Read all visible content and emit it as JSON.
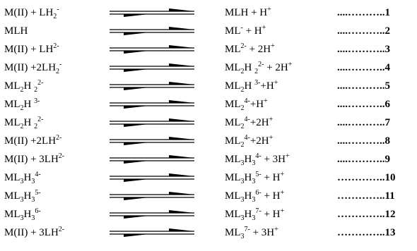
{
  "equations": [
    {
      "lhs": [
        {
          "t": "M(II) + LH"
        },
        {
          "t": "2",
          "s": "sub"
        },
        {
          "t": "-",
          "s": "sup"
        }
      ],
      "rhs": [
        {
          "t": "MLH + H"
        },
        {
          "t": "+",
          "s": "sup"
        }
      ],
      "number": "....………..1"
    },
    {
      "lhs": [
        {
          "t": "MLH"
        }
      ],
      "rhs": [
        {
          "t": "ML"
        },
        {
          "t": "-",
          "s": "sup"
        },
        {
          "t": " + H"
        },
        {
          "t": "+",
          "s": "sup"
        }
      ],
      "number": "....………..2"
    },
    {
      "lhs": [
        {
          "t": "M(II) + LH"
        },
        {
          "t": "2-",
          "s": "sup"
        }
      ],
      "rhs": [
        {
          "t": "ML"
        },
        {
          "t": "2-",
          "s": "sup"
        },
        {
          "t": " + 2H"
        },
        {
          "t": "+",
          "s": "sup"
        }
      ],
      "number": "....………..3"
    },
    {
      "lhs": [
        {
          "t": "M(II) +2LH"
        },
        {
          "t": "2",
          "s": "sub"
        },
        {
          "t": "-",
          "s": "sup"
        }
      ],
      "rhs": [
        {
          "t": "ML"
        },
        {
          "t": "2",
          "s": "sub"
        },
        {
          "t": "H "
        },
        {
          "t": "2",
          "s": "sub"
        },
        {
          "t": "2-",
          "s": "sup"
        },
        {
          "t": " + 2H"
        },
        {
          "t": "+",
          "s": "sup"
        }
      ],
      "number": "....………..4"
    },
    {
      "lhs": [
        {
          "t": "ML"
        },
        {
          "t": "2",
          "s": "sub"
        },
        {
          "t": "H "
        },
        {
          "t": "2",
          "s": "sub"
        },
        {
          "t": "2-",
          "s": "sup"
        }
      ],
      "rhs": [
        {
          "t": "ML"
        },
        {
          "t": "2",
          "s": "sub"
        },
        {
          "t": "H "
        },
        {
          "t": "3-",
          "s": "sup"
        },
        {
          "t": "+H"
        },
        {
          "t": "+",
          "s": "sup"
        }
      ],
      "number": "....………..5"
    },
    {
      "lhs": [
        {
          "t": "ML"
        },
        {
          "t": "2",
          "s": "sub"
        },
        {
          "t": "H "
        },
        {
          "t": "3-",
          "s": "sup"
        }
      ],
      "rhs": [
        {
          "t": "ML"
        },
        {
          "t": "2",
          "s": "sub"
        },
        {
          "t": "4-",
          "s": "sup"
        },
        {
          "t": "+H"
        },
        {
          "t": "+",
          "s": "sup"
        }
      ],
      "number": "....………..6"
    },
    {
      "lhs": [
        {
          "t": "ML"
        },
        {
          "t": "2",
          "s": "sub"
        },
        {
          "t": "H "
        },
        {
          "t": "2",
          "s": "sub"
        },
        {
          "t": "2-",
          "s": "sup"
        }
      ],
      "rhs": [
        {
          "t": "ML"
        },
        {
          "t": "2",
          "s": "sub"
        },
        {
          "t": "4-",
          "s": "sup"
        },
        {
          "t": "+2H"
        },
        {
          "t": "+",
          "s": "sup"
        }
      ],
      "number": "....………..7"
    },
    {
      "lhs": [
        {
          "t": "M(II) +2LH"
        },
        {
          "t": "2-",
          "s": "sup"
        }
      ],
      "rhs": [
        {
          "t": "ML"
        },
        {
          "t": "2",
          "s": "sub"
        },
        {
          "t": "4-",
          "s": "sup"
        },
        {
          "t": "+2H"
        },
        {
          "t": "+",
          "s": "sup"
        }
      ],
      "number": "....………..8"
    },
    {
      "lhs": [
        {
          "t": "M(II) + 3LH"
        },
        {
          "t": "2-",
          "s": "sup"
        }
      ],
      "rhs": [
        {
          "t": "ML"
        },
        {
          "t": "3",
          "s": "sub"
        },
        {
          "t": "H"
        },
        {
          "t": "3",
          "s": "sub"
        },
        {
          "t": "4-",
          "s": "sup"
        },
        {
          "t": " + 3H"
        },
        {
          "t": "+",
          "s": "sup"
        }
      ],
      "number": "....………..9"
    },
    {
      "lhs": [
        {
          "t": "ML"
        },
        {
          "t": "3",
          "s": "sub"
        },
        {
          "t": "H"
        },
        {
          "t": "3",
          "s": "sub"
        },
        {
          "t": "4-",
          "s": "sup"
        }
      ],
      "rhs": [
        {
          "t": "ML"
        },
        {
          "t": "3",
          "s": "sub"
        },
        {
          "t": "H"
        },
        {
          "t": "3",
          "s": "sub"
        },
        {
          "t": "5-",
          "s": "sup"
        },
        {
          "t": " + H"
        },
        {
          "t": "+",
          "s": "sup"
        }
      ],
      "number": "…………..10"
    },
    {
      "lhs": [
        {
          "t": "ML"
        },
        {
          "t": "3",
          "s": "sub"
        },
        {
          "t": "H"
        },
        {
          "t": "3",
          "s": "sub"
        },
        {
          "t": "5-",
          "s": "sup"
        }
      ],
      "rhs": [
        {
          "t": "ML"
        },
        {
          "t": "3",
          "s": "sub"
        },
        {
          "t": "H"
        },
        {
          "t": "3",
          "s": "sub"
        },
        {
          "t": "6-",
          "s": "sup"
        },
        {
          "t": " + H"
        },
        {
          "t": "+",
          "s": "sup"
        }
      ],
      "number": "…………..11"
    },
    {
      "lhs": [
        {
          "t": "ML"
        },
        {
          "t": "3",
          "s": "sub"
        },
        {
          "t": "H"
        },
        {
          "t": "3",
          "s": "sub"
        },
        {
          "t": "6-",
          "s": "sup"
        }
      ],
      "rhs": [
        {
          "t": "ML"
        },
        {
          "t": "3",
          "s": "sub"
        },
        {
          "t": "H"
        },
        {
          "t": "3",
          "s": "sub"
        },
        {
          "t": "7-",
          "s": "sup"
        },
        {
          "t": " + H"
        },
        {
          "t": "+",
          "s": "sup"
        }
      ],
      "number": "…………..12"
    },
    {
      "lhs": [
        {
          "t": "M(II) + 3LH"
        },
        {
          "t": "2-",
          "s": "sup"
        }
      ],
      "rhs": [
        {
          "t": "ML"
        },
        {
          "t": "3",
          "s": "sub"
        },
        {
          "t": "7-",
          "s": "sup"
        },
        {
          "t": " + 3H"
        },
        {
          "t": "+",
          "s": "sup"
        }
      ],
      "number": "…………..13"
    }
  ],
  "colors": {
    "text": "#000000",
    "background": "#ffffff"
  },
  "icons": {
    "equilibrium": "equilibrium-arrows-icon"
  }
}
